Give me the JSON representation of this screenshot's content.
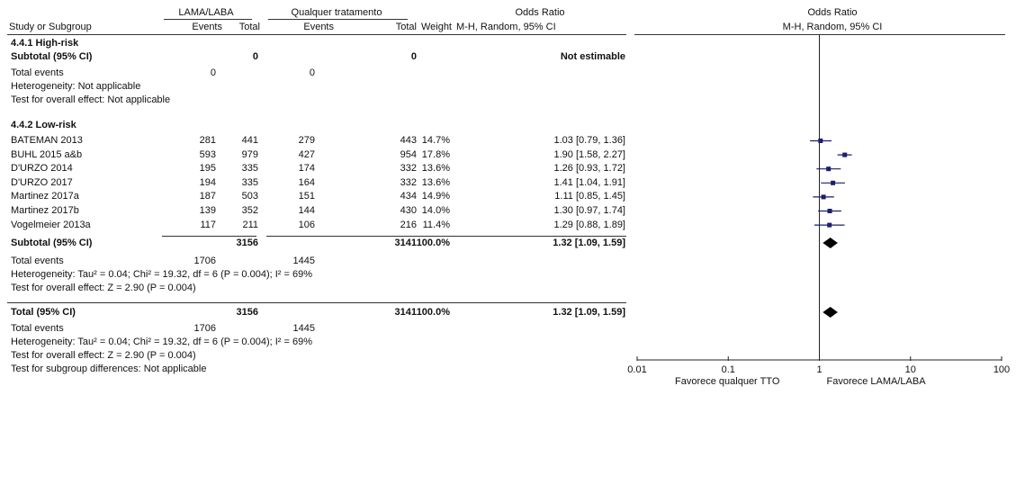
{
  "header": {
    "group1": "LAMA/LABA",
    "group2": "Qualquer tratamento",
    "or_title": "Odds Ratio",
    "col_study": "Study or Subgroup",
    "col_events1": "Events",
    "col_total1": "Total",
    "col_events2": "Events",
    "col_total2": "Total",
    "col_weight": "Weight",
    "col_or": "M-H, Random, 95% CI",
    "plot_title": "Odds Ratio",
    "plot_method": "M-H, Random, 95% CI"
  },
  "subgroup1": {
    "title": "4.4.1 High-risk",
    "subtotal_label": "Subtotal (95% CI)",
    "subtotal_total1": "0",
    "subtotal_total2": "0",
    "subtotal_or": "Not estimable",
    "events_label": "Total events",
    "events1": "0",
    "events2": "0",
    "heterogeneity": "Heterogeneity: Not applicable",
    "overall": "Test for overall effect: Not applicable"
  },
  "subgroup2": {
    "title": "4.4.2 Low-risk",
    "studies": [
      {
        "name": "BATEMAN 2013",
        "e1": "281",
        "t1": "441",
        "e2": "279",
        "t2": "443",
        "w": "14.7%",
        "ci": "1.03 [0.79, 1.36]"
      },
      {
        "name": "BUHL 2015 a&b",
        "e1": "593",
        "t1": "979",
        "e2": "427",
        "t2": "954",
        "w": "17.8%",
        "ci": "1.90 [1.58, 2.27]"
      },
      {
        "name": "D'URZO 2014",
        "e1": "195",
        "t1": "335",
        "e2": "174",
        "t2": "332",
        "w": "13.6%",
        "ci": "1.26 [0.93, 1.72]"
      },
      {
        "name": "D'URZO 2017",
        "e1": "194",
        "t1": "335",
        "e2": "164",
        "t2": "332",
        "w": "13.6%",
        "ci": "1.41 [1.04, 1.91]"
      },
      {
        "name": "Martinez 2017a",
        "e1": "187",
        "t1": "503",
        "e2": "151",
        "t2": "434",
        "w": "14.9%",
        "ci": "1.11 [0.85, 1.45]"
      },
      {
        "name": "Martinez 2017b",
        "e1": "139",
        "t1": "352",
        "e2": "144",
        "t2": "430",
        "w": "14.0%",
        "ci": "1.30 [0.97, 1.74]"
      },
      {
        "name": "Vogelmeier 2013a",
        "e1": "117",
        "t1": "211",
        "e2": "106",
        "t2": "216",
        "w": "11.4%",
        "ci": "1.29 [0.88, 1.89]"
      }
    ],
    "subtotal_label": "Subtotal (95% CI)",
    "subtotal_total1": "3156",
    "subtotal_total2": "3141",
    "subtotal_weight": "100.0%",
    "subtotal_or": "1.32 [1.09, 1.59]",
    "events_label": "Total events",
    "events1": "1706",
    "events2": "1445",
    "heterogeneity": "Heterogeneity: Tau² = 0.04; Chi² = 19.32, df = 6 (P = 0.004); I² = 69%",
    "overall": "Test for overall effect: Z = 2.90 (P = 0.004)"
  },
  "total": {
    "label": "Total (95% CI)",
    "total1": "3156",
    "total2": "3141",
    "weight": "100.0%",
    "or": "1.32 [1.09, 1.59]",
    "events_label": "Total events",
    "events1": "1706",
    "events2": "1445",
    "heterogeneity": "Heterogeneity: Tau² = 0.04; Chi² = 19.32, df = 6 (P = 0.004); I² = 69%",
    "overall": "Test for overall effect: Z = 2.90 (P = 0.004)",
    "subgroup_diff": "Test for subgroup differences: Not applicable"
  },
  "chart_data": {
    "type": "forest",
    "xscale": "log",
    "xlim": [
      0.01,
      100
    ],
    "xticks": [
      0.01,
      0.1,
      1,
      10,
      100
    ],
    "xtick_labels": [
      "0.01",
      "0.1",
      "1",
      "10",
      "100"
    ],
    "xlabel_left": "Favorece qualquer TTO",
    "xlabel_right": "Favorece LAMA/LABA",
    "marker_color": "#1a1f6e",
    "diamond_color": "#000000",
    "points": [
      {
        "label": "BATEMAN 2013",
        "or": 1.03,
        "lo": 0.79,
        "hi": 1.36
      },
      {
        "label": "BUHL 2015 a&b",
        "or": 1.9,
        "lo": 1.58,
        "hi": 2.27
      },
      {
        "label": "D'URZO 2014",
        "or": 1.26,
        "lo": 0.93,
        "hi": 1.72
      },
      {
        "label": "D'URZO 2017",
        "or": 1.41,
        "lo": 1.04,
        "hi": 1.91
      },
      {
        "label": "Martinez 2017a",
        "or": 1.11,
        "lo": 0.85,
        "hi": 1.45
      },
      {
        "label": "Martinez 2017b",
        "or": 1.3,
        "lo": 0.97,
        "hi": 1.74
      },
      {
        "label": "Vogelmeier 2013a",
        "or": 1.29,
        "lo": 0.88,
        "hi": 1.89
      }
    ],
    "diamonds": [
      {
        "label": "Subtotal (95% CI)",
        "or": 1.32,
        "lo": 1.09,
        "hi": 1.59
      },
      {
        "label": "Total (95% CI)",
        "or": 1.32,
        "lo": 1.09,
        "hi": 1.59
      }
    ]
  }
}
